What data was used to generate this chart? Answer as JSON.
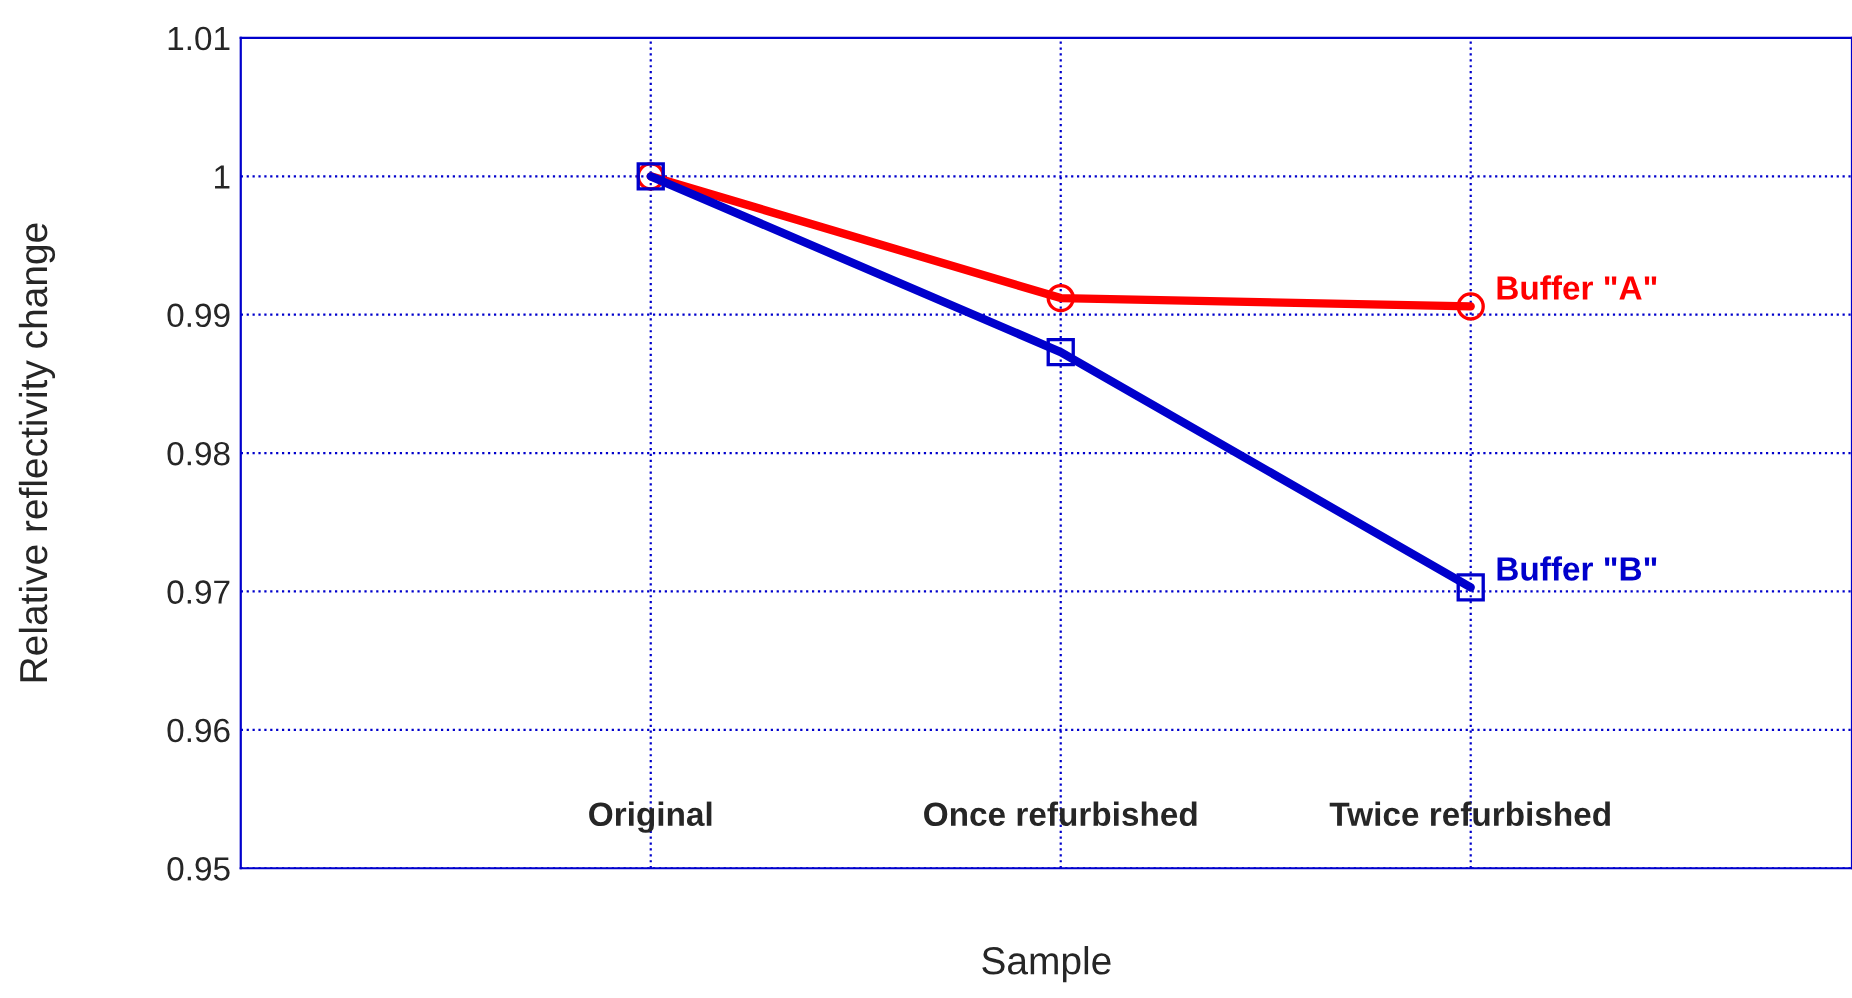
{
  "chart_data": {
    "type": "line",
    "xlabel": "Sample",
    "ylabel": "Relative reflectivity change",
    "categories": [
      "Original",
      "Once refurbished",
      "Twice refurbished"
    ],
    "series": [
      {
        "name": "Buffer \"A\"",
        "color": "#ff0000",
        "marker": "circle",
        "values": [
          1.0,
          0.9912,
          0.9906
        ]
      },
      {
        "name": "Buffer \"B\"",
        "color": "#0000cc",
        "marker": "square",
        "values": [
          1.0,
          0.9873,
          0.9703
        ]
      }
    ],
    "ylim": [
      0.95,
      1.01
    ],
    "yticks": [
      0.95,
      0.96,
      0.97,
      0.98,
      0.99,
      1,
      1.01
    ],
    "grid": true,
    "line_style": "solid"
  }
}
